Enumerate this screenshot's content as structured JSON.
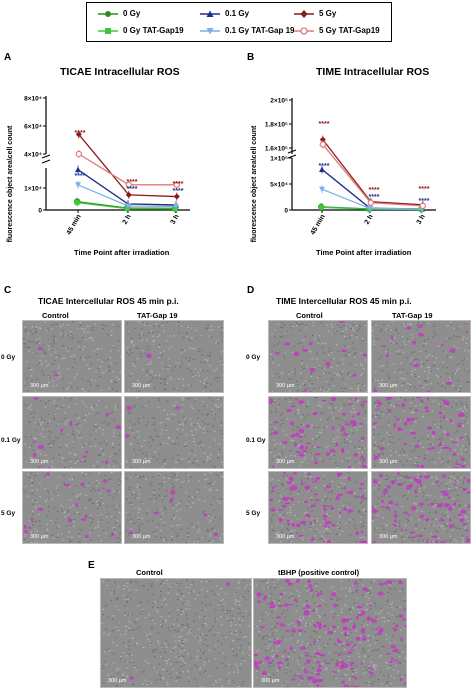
{
  "legend": {
    "items": [
      {
        "label": "0 Gy",
        "color": "#2e8b22",
        "marker": "circle",
        "fill": true
      },
      {
        "label": "0.1 Gy",
        "color": "#1f2f8f",
        "marker": "triangle",
        "fill": true
      },
      {
        "label": "5 Gy",
        "color": "#8b1a1a",
        "marker": "diamond",
        "fill": true
      },
      {
        "label": "0 Gy TAT-Gap19",
        "color": "#3ec63e",
        "marker": "square",
        "fill": true
      },
      {
        "label": "0.1 Gy TAT-Gap 19",
        "color": "#7fb0e6",
        "marker": "triangle-down",
        "fill": true
      },
      {
        "label": "5 Gy TAT-Gap19",
        "color": "#e07a7a",
        "marker": "circle",
        "fill": false
      }
    ]
  },
  "panels": {
    "A": "A",
    "B": "B",
    "C": "C",
    "D": "D",
    "E": "E"
  },
  "chart_data": [
    {
      "type": "line",
      "title": "TICAE Intracellular ROS",
      "xlabel": "Time Point after irradiation",
      "ylabel": "fluorescence object area\\cell count",
      "categories": [
        "45 min",
        "2 h",
        "3 h"
      ],
      "yticks_top": [
        "8×10⁴",
        "6×10⁴",
        "4×10⁴"
      ],
      "yticks_bottom": [
        "1×10⁴",
        "0"
      ],
      "broken_axis": true,
      "series": [
        {
          "name": "0 Gy",
          "values": [
            2500,
            600,
            500
          ]
        },
        {
          "name": "0.1 Gy",
          "values": [
            12000,
            1800,
            1500
          ]
        },
        {
          "name": "5 Gy",
          "values": [
            54000,
            4500,
            4000
          ]
        },
        {
          "name": "0 Gy TAT-Gap19",
          "values": [
            2200,
            400,
            300
          ]
        },
        {
          "name": "0.1 Gy TAT-Gap 19",
          "values": [
            7500,
            1200,
            1100
          ]
        },
        {
          "name": "5 Gy TAT-Gap19",
          "values": [
            40000,
            7500,
            7500
          ]
        }
      ],
      "annotations": [
        "****",
        "****",
        "****",
        "****",
        "****",
        "****"
      ]
    },
    {
      "type": "line",
      "title": "TIME Intracellular ROS",
      "xlabel": "Time Point after irradiation",
      "ylabel": "fluorescence object area\\cell count",
      "categories": [
        "45 min",
        "2 h",
        "3 h"
      ],
      "yticks_top": [
        "2×10⁵",
        "1.8×10⁵",
        "1.6×10⁵"
      ],
      "yticks_bottom": [
        "1×10⁵",
        "5×10⁴",
        "0"
      ],
      "broken_axis": true,
      "series": [
        {
          "name": "0 Gy",
          "values": [
            6000,
            2000,
            1500
          ]
        },
        {
          "name": "0.1 Gy",
          "values": [
            78000,
            3500,
            2000
          ]
        },
        {
          "name": "5 Gy",
          "values": [
            167000,
            16000,
            10000
          ]
        },
        {
          "name": "0 Gy TAT-Gap19",
          "values": [
            5000,
            1500,
            1000
          ]
        },
        {
          "name": "0.1 Gy TAT-Gap 19",
          "values": [
            40000,
            3000,
            2000
          ]
        },
        {
          "name": "5 Gy TAT-Gap19",
          "values": [
            163000,
            14000,
            8000
          ]
        }
      ],
      "annotations": [
        "****",
        "****",
        "****",
        "****",
        "****",
        "****"
      ]
    }
  ],
  "micro_C": {
    "title": "TICAE Intercellular ROS 45 min p.i.",
    "cols": [
      "Control",
      "TAT-Gap 19"
    ],
    "rows": [
      "0 Gy",
      "0.1 Gy",
      "5 Gy"
    ],
    "scale": "300 µm",
    "density": [
      [
        2,
        1
      ],
      [
        14,
        3
      ],
      [
        18,
        6
      ]
    ]
  },
  "micro_D": {
    "title": "TIME Intercellular ROS 45 min p.i.",
    "cols": [
      "Control",
      "TAT-Gap 19"
    ],
    "rows": [
      "0 Gy",
      "0.1 Gy",
      "5 Gy"
    ],
    "scale": "300 µm",
    "density": [
      [
        12,
        14
      ],
      [
        55,
        60
      ],
      [
        75,
        80
      ]
    ]
  },
  "micro_E": {
    "cols": [
      "Control",
      "tBHP (positive control)"
    ],
    "scale": "300 µm",
    "density": [
      2,
      160
    ]
  },
  "colors": {
    "magenta": "#c23cc2",
    "gray": "#8c8c8c"
  }
}
